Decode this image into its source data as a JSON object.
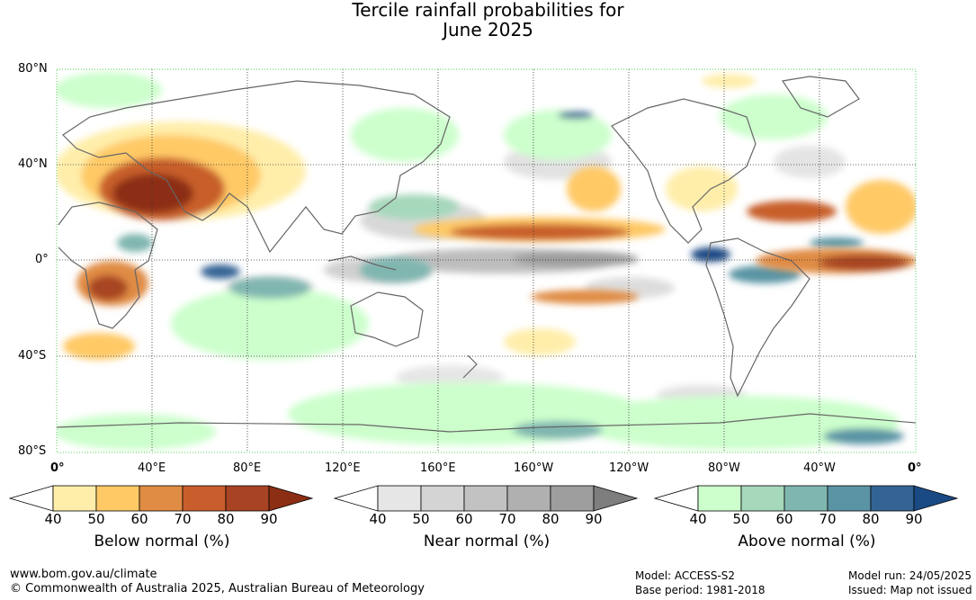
{
  "title_line1": "Tercile rainfall probabilities for",
  "title_line2": "June 2025",
  "lat_labels": [
    "80°N",
    "40°N",
    "0°",
    "40°S",
    "80°S"
  ],
  "lon_labels": [
    "0°",
    "40°E",
    "80°E",
    "120°E",
    "160°E",
    "160°W",
    "120°W",
    "80°W",
    "40°W",
    "0°"
  ],
  "colorbars": [
    {
      "title": "Below normal (%)",
      "ticks": [
        "40",
        "50",
        "60",
        "70",
        "80",
        "90"
      ],
      "colors": [
        "#ffeeaa",
        "#ffc966",
        "#e08c44",
        "#c85e2c",
        "#a84424",
        "#8c2e14"
      ]
    },
    {
      "title": "Near normal (%)",
      "ticks": [
        "40",
        "50",
        "60",
        "70",
        "80",
        "90"
      ],
      "colors": [
        "#e6e6e6",
        "#d4d4d4",
        "#c2c2c2",
        "#b0b0b0",
        "#9e9e9e",
        "#7e7e7e"
      ]
    },
    {
      "title": "Above normal (%)",
      "ticks": [
        "40",
        "50",
        "60",
        "70",
        "80",
        "90"
      ],
      "colors": [
        "#ccffcc",
        "#a6d8bc",
        "#80b6b0",
        "#5a94a4",
        "#346494",
        "#1a4a84"
      ]
    }
  ],
  "footer": {
    "url": "www.bom.gov.au/climate",
    "copyright": "© Commonwealth of Australia 2025, Australian Bureau of Meteorology",
    "model": "Model: ACCESS-S2",
    "base_period": "Base period: 1981-2018",
    "model_run": "Model run: 24/05/2025",
    "issued": "Issued: Map not issued"
  }
}
